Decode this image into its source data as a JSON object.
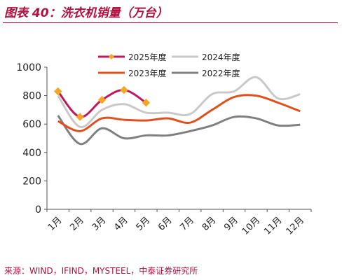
{
  "title": "图表 40：洗衣机销量（万台）",
  "source": "来源：WIND，IFIND，MYSTEEL，中泰证券研究所",
  "chart_data": {
    "type": "line",
    "categories": [
      "1月",
      "2月",
      "3月",
      "4月",
      "5月",
      "6月",
      "7月",
      "8月",
      "9月",
      "10月",
      "11月",
      "12月"
    ],
    "ylim": [
      0,
      1000
    ],
    "yticks": [
      "0",
      "200",
      "400",
      "600",
      "800",
      "1000"
    ],
    "xlabel": "",
    "ylabel": "",
    "grid": false,
    "legend_position": "top",
    "series": [
      {
        "name": "2025年度",
        "color": "#c0185a",
        "marker_color": "#f5a623",
        "markers": true,
        "values": [
          830,
          650,
          770,
          840,
          750,
          null,
          null,
          null,
          null,
          null,
          null,
          null
        ]
      },
      {
        "name": "2024年度",
        "color": "#c9c9c9",
        "markers": false,
        "values": [
          800,
          580,
          700,
          740,
          680,
          680,
          670,
          810,
          830,
          930,
          780,
          810
        ]
      },
      {
        "name": "2023年度",
        "color": "#e0501e",
        "markers": false,
        "values": [
          620,
          550,
          640,
          630,
          625,
          640,
          610,
          700,
          790,
          800,
          750,
          690
        ]
      },
      {
        "name": "2022年度",
        "color": "#808080",
        "markers": false,
        "values": [
          660,
          460,
          570,
          500,
          520,
          520,
          550,
          590,
          650,
          640,
          590,
          595
        ]
      }
    ]
  }
}
